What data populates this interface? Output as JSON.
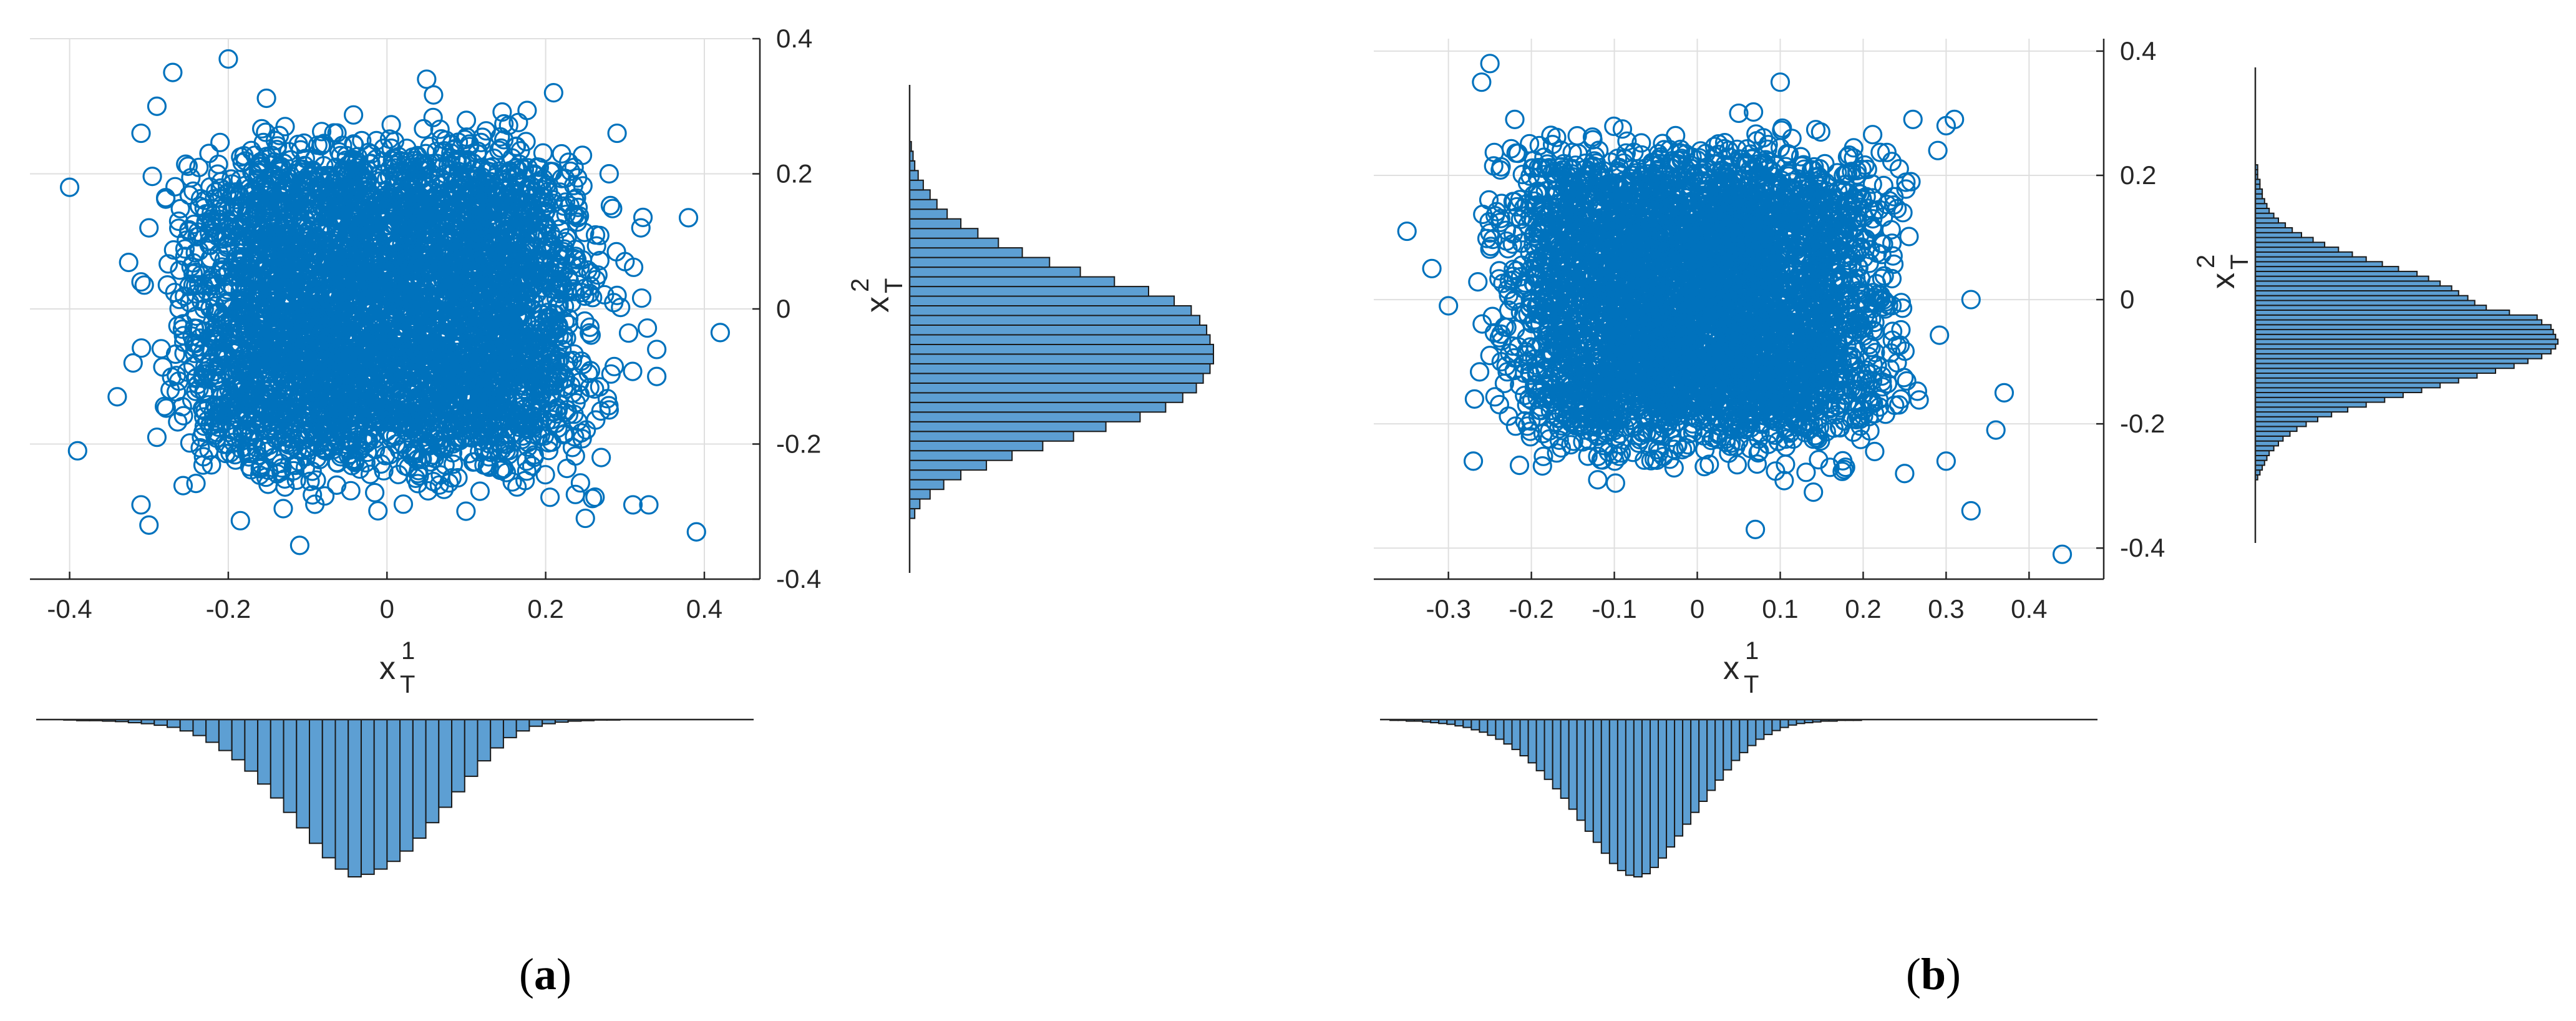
{
  "chart_data": [
    {
      "type": "scatter",
      "caption_letter": "a",
      "marker_color": "#0072bd",
      "hist_fill": "#5d9fd3",
      "grid": true,
      "xlim": [
        -0.45,
        0.47
      ],
      "ylim": [
        -0.4,
        0.4
      ],
      "xticks": [
        -0.4,
        -0.2,
        0,
        0.2,
        0.4
      ],
      "xtick_labels": [
        "-0.4",
        "-0.2",
        "0",
        "0.2",
        "0.4"
      ],
      "yticks": [
        -0.4,
        -0.2,
        0,
        0.2,
        0.4
      ],
      "ytick_labels": [
        "-0.4",
        "-0.2",
        "0",
        "0.2",
        "0.4"
      ],
      "xlabel": {
        "base": "x",
        "sup": "1",
        "sub": "T"
      },
      "ylabel": {
        "base": "x",
        "sup": "2",
        "sub": "T"
      },
      "outliers": [
        [
          -0.4,
          0.18
        ],
        [
          -0.39,
          -0.21
        ],
        [
          0.42,
          -0.035
        ],
        [
          0.39,
          -0.33
        ],
        [
          0.38,
          0.135
        ],
        [
          -0.3,
          -0.32
        ],
        [
          -0.29,
          0.3
        ],
        [
          -0.31,
          0.26
        ],
        [
          -0.11,
          -0.35
        ],
        [
          0.05,
          0.34
        ],
        [
          -0.27,
          0.35
        ],
        [
          -0.2,
          0.37
        ],
        [
          0.34,
          -0.06
        ],
        [
          0.34,
          -0.1
        ],
        [
          0.33,
          -0.29
        ],
        [
          -0.34,
          -0.13
        ],
        [
          0.29,
          0.26
        ],
        [
          -0.31,
          0.04
        ],
        [
          0.31,
          -0.29
        ],
        [
          -0.31,
          -0.29
        ],
        [
          -0.3,
          0.12
        ],
        [
          0.3,
          0.07
        ],
        [
          0.32,
          0.12
        ],
        [
          -0.29,
          -0.19
        ],
        [
          0.21,
          0.32
        ],
        [
          0.25,
          -0.31
        ],
        [
          0.28,
          0.2
        ],
        [
          0.27,
          -0.22
        ],
        [
          0.29,
          0.02
        ],
        [
          -0.32,
          -0.08
        ]
      ],
      "core": {
        "n": 4500,
        "x_halfwidth": 0.21,
        "y_halfwidth": 0.2,
        "edge_spread": 0.045
      },
      "hist_x": {
        "edges_start": -0.44,
        "bin_width": 0.0163,
        "counts": [
          0,
          0,
          1,
          2,
          2,
          3,
          4,
          6,
          8,
          11,
          15,
          22,
          31,
          44,
          60,
          78,
          100,
          125,
          152,
          180,
          210,
          240,
          268,
          290,
          305,
          300,
          290,
          275,
          255,
          230,
          200,
          170,
          140,
          110,
          80,
          55,
          35,
          22,
          13,
          8,
          5,
          3,
          2,
          1,
          1,
          0,
          0,
          0,
          0,
          0,
          0,
          0,
          0,
          0,
          0
        ]
      },
      "hist_y": {
        "edges_start": -0.31,
        "bin_width": 0.0143,
        "counts": [
          3,
          6,
          12,
          20,
          30,
          45,
          60,
          78,
          96,
          115,
          135,
          150,
          160,
          168,
          172,
          176,
          178,
          178,
          176,
          174,
          170,
          165,
          155,
          140,
          120,
          100,
          82,
          66,
          52,
          40,
          30,
          22,
          16,
          12,
          8,
          5,
          3,
          2,
          1,
          0,
          0,
          0,
          0
        ]
      }
    },
    {
      "type": "scatter",
      "caption_letter": "b",
      "marker_color": "#0072bd",
      "hist_fill": "#5d9fd3",
      "grid": true,
      "xlim": [
        -0.39,
        0.49
      ],
      "ylim": [
        -0.45,
        0.42
      ],
      "xticks": [
        -0.3,
        -0.2,
        -0.1,
        0,
        0.1,
        0.2,
        0.3,
        0.4
      ],
      "xtick_labels": [
        "-0.3",
        "-0.2",
        "-0.1",
        "0",
        "0.1",
        "0.2",
        "0.3",
        "0.4"
      ],
      "yticks": [
        -0.4,
        -0.2,
        0,
        0.2,
        0.4
      ],
      "ytick_labels": [
        "-0.4",
        "-0.2",
        "0",
        "0.2",
        "0.4"
      ],
      "xlabel": {
        "base": "x",
        "sup": "1",
        "sub": "T"
      },
      "ylabel": {
        "base": "x",
        "sup": "2",
        "sub": "T"
      },
      "outliers": [
        [
          0.44,
          -0.41
        ],
        [
          -0.35,
          0.11
        ],
        [
          -0.32,
          0.05
        ],
        [
          -0.3,
          -0.01
        ],
        [
          0.33,
          -0.34
        ],
        [
          0.37,
          -0.15
        ],
        [
          0.36,
          -0.21
        ],
        [
          -0.25,
          0.38
        ],
        [
          -0.26,
          0.35
        ],
        [
          0.1,
          0.35
        ],
        [
          -0.27,
          -0.26
        ],
        [
          0.07,
          -0.37
        ],
        [
          0.14,
          -0.31
        ],
        [
          0.3,
          0.28
        ],
        [
          0.31,
          0.29
        ],
        [
          0.3,
          -0.26
        ],
        [
          -0.22,
          0.29
        ],
        [
          0.26,
          0.29
        ],
        [
          0.16,
          -0.27
        ],
        [
          -0.12,
          -0.29
        ],
        [
          0.29,
          0.24
        ],
        [
          -0.25,
          -0.09
        ],
        [
          0.05,
          0.3
        ],
        [
          0.25,
          -0.28
        ],
        [
          0.33,
          0.0
        ]
      ],
      "core": {
        "n": 4500,
        "x_halfwidth": 0.185,
        "y_halfwidth": 0.2,
        "edge_spread": 0.04
      },
      "hist_x": {
        "edges_start": -0.39,
        "bin_width": 0.0098,
        "counts": [
          0,
          0,
          1,
          1,
          2,
          2,
          3,
          4,
          5,
          6,
          8,
          10,
          13,
          16,
          20,
          25,
          31,
          38,
          46,
          55,
          65,
          76,
          88,
          100,
          114,
          128,
          142,
          156,
          170,
          183,
          192,
          198,
          200,
          196,
          188,
          176,
          162,
          148,
          133,
          118,
          104,
          90,
          77,
          64,
          52,
          42,
          33,
          25,
          19,
          14,
          10,
          7,
          5,
          4,
          3,
          2,
          2,
          1,
          1,
          1,
          0,
          0,
          0,
          0,
          0,
          0,
          0,
          0,
          0,
          0,
          0,
          0,
          0,
          0,
          0,
          0,
          0,
          0,
          0,
          0,
          0,
          0,
          0,
          0,
          0,
          0,
          0,
          0,
          0,
          0
        ]
      },
      "hist_y": {
        "edges_start": -0.29,
        "bin_width": 0.0078,
        "counts": [
          1,
          2,
          3,
          4,
          5,
          6,
          8,
          10,
          12,
          15,
          18,
          22,
          27,
          33,
          40,
          48,
          56,
          64,
          72,
          80,
          88,
          96,
          104,
          112,
          118,
          124,
          128,
          130,
          131,
          130,
          129,
          128,
          124,
          122,
          110,
          100,
          95,
          92,
          88,
          85,
          80,
          75,
          70,
          62,
          55,
          48,
          42,
          36,
          30,
          25,
          20,
          16,
          13,
          10,
          8,
          6,
          5,
          4,
          3,
          3,
          2,
          2,
          1,
          1,
          1,
          0,
          0,
          0,
          0,
          0,
          0,
          0,
          0,
          0,
          0,
          0,
          0,
          0,
          0,
          0
        ]
      }
    }
  ]
}
